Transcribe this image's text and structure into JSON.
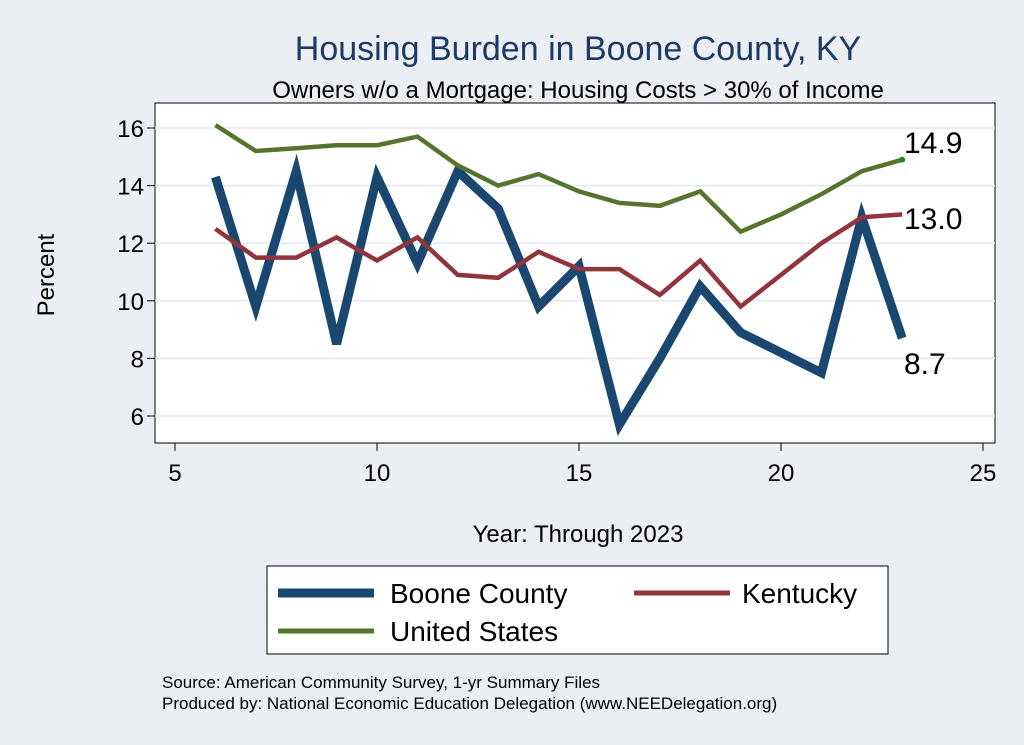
{
  "chart_data": {
    "type": "line",
    "title": "Housing Burden in Boone County, KY",
    "subtitle": "Owners w/o a Mortgage: Housing Costs > 30% of Income",
    "xlabel": "Year: Through 2023",
    "ylabel": "Percent",
    "xlim": [
      5,
      25
    ],
    "ylim": [
      5,
      16.5
    ],
    "xticks": [
      5,
      10,
      15,
      20,
      25
    ],
    "yticks": [
      6,
      8,
      10,
      12,
      14,
      16
    ],
    "grid": true,
    "series": [
      {
        "name": "Boone County",
        "color": "#1a476f",
        "x": [
          6,
          7,
          8,
          9,
          10,
          11,
          12,
          13,
          14,
          15,
          16,
          17,
          18,
          19,
          20,
          21,
          22,
          23
        ],
        "values": [
          14.3,
          9.8,
          14.5,
          8.5,
          14.3,
          11.3,
          14.5,
          13.2,
          9.8,
          11.2,
          5.7,
          8.0,
          10.5,
          8.9,
          8.2,
          7.5,
          12.9,
          8.7
        ],
        "end_label": "8.7"
      },
      {
        "name": "Kentucky",
        "color": "#90353b",
        "x": [
          6,
          7,
          8,
          9,
          10,
          11,
          12,
          13,
          14,
          15,
          16,
          17,
          18,
          19,
          20,
          21,
          22,
          23
        ],
        "values": [
          12.5,
          11.5,
          11.5,
          12.2,
          11.4,
          12.2,
          10.9,
          10.8,
          11.7,
          11.1,
          11.1,
          10.2,
          11.4,
          9.8,
          10.9,
          12.0,
          12.9,
          13.0
        ],
        "end_label": "13.0"
      },
      {
        "name": "United States",
        "color": "#55752f",
        "x": [
          6,
          7,
          8,
          9,
          10,
          11,
          12,
          13,
          14,
          15,
          16,
          17,
          18,
          19,
          20,
          21,
          22,
          23
        ],
        "values": [
          16.1,
          15.2,
          15.3,
          15.4,
          15.4,
          15.7,
          14.7,
          14.0,
          14.4,
          13.8,
          13.4,
          13.3,
          13.8,
          12.4,
          13.0,
          13.7,
          14.5,
          14.9
        ],
        "end_label": "14.9"
      }
    ],
    "legend": [
      "Boone County",
      "Kentucky",
      "United States"
    ],
    "legend_position": "bottom",
    "notes": [
      "Source: American Community Survey, 1-yr Summary Files",
      "Produced by: National Economic Education Delegation (www.NEEDelegation.org)"
    ]
  }
}
